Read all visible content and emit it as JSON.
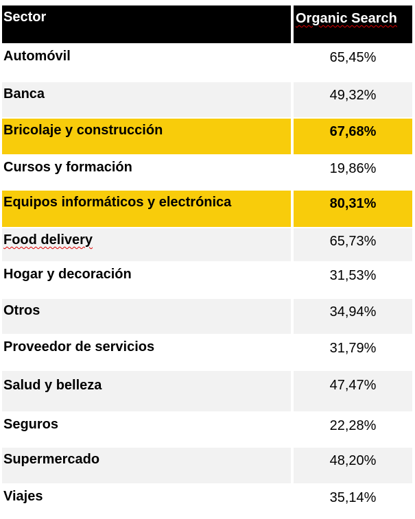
{
  "table": {
    "header": [
      "Sector",
      "Organic Search"
    ],
    "rows": [
      [
        "Automóvil",
        "65,45%"
      ],
      [
        "Banca",
        "49,32%"
      ],
      [
        "Bricolaje y construcción",
        "67,68%"
      ],
      [
        "Cursos y formación",
        "19,86%"
      ],
      [
        "Equipos informáticos y electrónica",
        "80,31%"
      ],
      [
        "Food delivery",
        "65,73%"
      ],
      [
        "Hogar y decoración",
        "31,53%"
      ],
      [
        "Otros",
        "34,94%"
      ],
      [
        "Proveedor de servicios",
        "31,79%"
      ],
      [
        "Salud y belleza",
        "47,47%"
      ],
      [
        "Seguros",
        "22,28%"
      ],
      [
        "Supermercado",
        "48,20%"
      ],
      [
        "Viajes",
        "35,14%"
      ]
    ]
  }
}
